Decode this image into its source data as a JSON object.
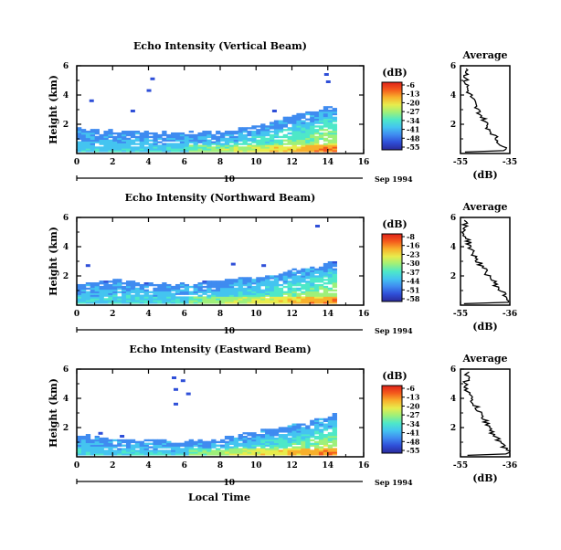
{
  "panels": [
    {
      "title": "Echo Intensity (Vertical Beam)",
      "avg_title": "Average",
      "ylabel": "Height (km)",
      "avg_xlabel": "(dB)",
      "avg_xticks": [
        "-55",
        "-35"
      ],
      "cb_label": "(dB)",
      "cb_ticks": [
        "-6",
        "-13",
        "-20",
        "-27",
        "-34",
        "-41",
        "-48",
        "-55"
      ],
      "time_axis": {
        "label": "10",
        "date": "Sep 1994"
      }
    },
    {
      "title": "Echo Intensity (Northward Beam)",
      "avg_title": "Average",
      "ylabel": "Height (km)",
      "avg_xlabel": "(dB)",
      "avg_xticks": [
        "-55",
        "-36"
      ],
      "cb_label": "(dB)",
      "cb_ticks": [
        "-8",
        "-16",
        "-23",
        "-30",
        "-37",
        "-44",
        "-51",
        "-58"
      ],
      "time_axis": {
        "label": "10",
        "date": "Sep 1994"
      }
    },
    {
      "title": "Echo Intensity (Eastward Beam)",
      "avg_title": "Average",
      "ylabel": "Height (km)",
      "avg_xlabel": "(dB)",
      "avg_xticks": [
        "-55",
        "-36"
      ],
      "cb_label": "(dB)",
      "cb_ticks": [
        "-6",
        "-13",
        "-20",
        "-27",
        "-34",
        "-41",
        "-48",
        "-55"
      ],
      "time_axis": {
        "label": "10",
        "date": "Sep 1994"
      }
    }
  ],
  "xlabel": "Local Time",
  "colormap": [
    "#2a2a9a",
    "#2f4fd8",
    "#3f8bf0",
    "#44c4f0",
    "#4ee8c8",
    "#9ef07a",
    "#e8ec4c",
    "#f8b02c",
    "#f45a1c",
    "#e0221a"
  ],
  "chart_data": [
    {
      "type": "heatmap",
      "title": "Echo Intensity (Vertical Beam)",
      "xlabel": "",
      "ylabel": "Height (km)",
      "xlim": [
        0,
        16
      ],
      "ylim": [
        0,
        6
      ],
      "xticks": [
        0,
        2,
        4,
        6,
        8,
        10,
        12,
        14,
        16
      ],
      "yticks": [
        2,
        4,
        6
      ],
      "data_extent_x": [
        0,
        14.5
      ],
      "echo_top_km": [
        [
          0,
          1.7
        ],
        [
          2,
          1.5
        ],
        [
          4,
          1.4
        ],
        [
          6,
          1.4
        ],
        [
          8,
          1.5
        ],
        [
          10,
          1.8
        ],
        [
          12,
          2.5
        ],
        [
          14,
          3.2
        ],
        [
          14.5,
          3.4
        ]
      ],
      "colorbar_db": [
        -55,
        -6
      ],
      "average_profile": {
        "xlim": [
          -55,
          -35
        ],
        "x_db": [
          -52,
          -53,
          -52,
          -50,
          -49,
          -47,
          -45,
          -44,
          -42,
          -40,
          -38,
          -36
        ],
        "height_km": [
          5.8,
          5.0,
          4.3,
          3.7,
          3.2,
          2.7,
          2.2,
          1.8,
          1.4,
          0.9,
          0.5,
          0.1
        ]
      }
    },
    {
      "type": "heatmap",
      "title": "Echo Intensity (Northward Beam)",
      "xlabel": "",
      "ylabel": "Height (km)",
      "xlim": [
        0,
        16
      ],
      "ylim": [
        0,
        6
      ],
      "xticks": [
        0,
        2,
        4,
        6,
        8,
        10,
        12,
        14,
        16
      ],
      "yticks": [
        2,
        4,
        6
      ],
      "data_extent_x": [
        0,
        14.5
      ],
      "echo_top_km": [
        [
          0,
          1.4
        ],
        [
          2,
          1.7
        ],
        [
          4,
          1.4
        ],
        [
          6,
          1.5
        ],
        [
          8,
          1.6
        ],
        [
          10,
          1.9
        ],
        [
          12,
          2.3
        ],
        [
          14,
          2.8
        ],
        [
          14.5,
          3.0
        ]
      ],
      "colorbar_db": [
        -58,
        -8
      ],
      "average_profile": {
        "xlim": [
          -55,
          -36
        ],
        "x_db": [
          -53,
          -54,
          -52,
          -51,
          -49,
          -47,
          -45,
          -43,
          -41,
          -39,
          -37,
          -36
        ],
        "height_km": [
          5.8,
          5.0,
          4.4,
          3.8,
          3.2,
          2.7,
          2.2,
          1.8,
          1.3,
          0.9,
          0.5,
          0.1
        ]
      }
    },
    {
      "type": "heatmap",
      "title": "Echo Intensity (Eastward Beam)",
      "xlabel": "Local Time",
      "ylabel": "Height (km)",
      "xlim": [
        0,
        16
      ],
      "ylim": [
        0,
        6
      ],
      "xticks": [
        0,
        2,
        4,
        6,
        8,
        10,
        12,
        14,
        16
      ],
      "yticks": [
        2,
        4,
        6
      ],
      "data_extent_x": [
        0,
        14.5
      ],
      "echo_top_km": [
        [
          0,
          1.4
        ],
        [
          2,
          1.2
        ],
        [
          4,
          1.1
        ],
        [
          6,
          1.0
        ],
        [
          8,
          1.2
        ],
        [
          10,
          1.7
        ],
        [
          12,
          2.1
        ],
        [
          14,
          2.7
        ],
        [
          14.5,
          3.0
        ]
      ],
      "colorbar_db": [
        -55,
        -6
      ],
      "average_profile": {
        "xlim": [
          -55,
          -36
        ],
        "x_db": [
          -52,
          -53,
          -52,
          -50,
          -48,
          -46,
          -44,
          -43,
          -41,
          -39,
          -37,
          -36
        ],
        "height_km": [
          5.8,
          5.0,
          4.3,
          3.7,
          3.1,
          2.6,
          2.1,
          1.7,
          1.3,
          0.8,
          0.4,
          0.1
        ]
      }
    }
  ]
}
